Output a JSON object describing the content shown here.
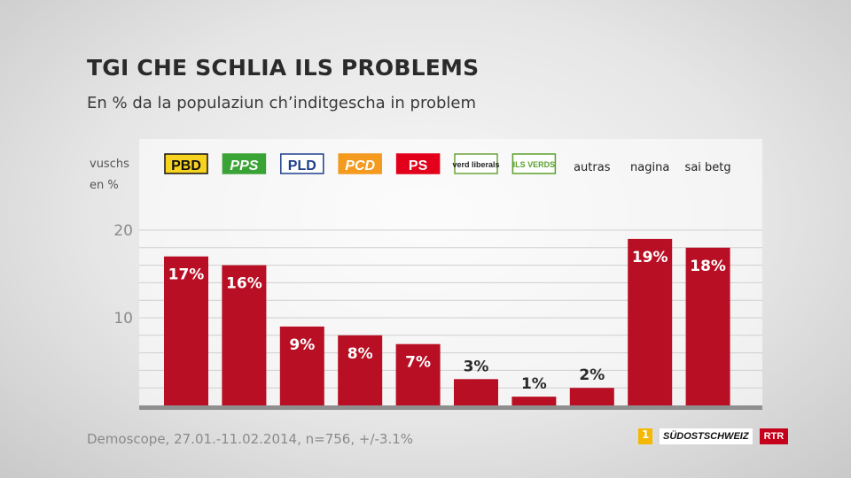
{
  "header": {
    "title": "TGI CHE SCHLIA ILS PROBLEMS",
    "subtitle": "En % da la populaziun ch’inditgescha in problem"
  },
  "footer": {
    "source": "Demoscope, 27.01.-11.02.2014, n=756, +/-3.1%",
    "logos": [
      "SÜDOSTSCHWEIZ",
      "RTR"
    ]
  },
  "colors": {
    "bar": "#b80f24",
    "axis": "#8f8f8f",
    "grid": "#cfcfcf"
  },
  "chart_data": {
    "type": "bar",
    "title": "TGI CHE SCHLIA ILS PROBLEMS",
    "ylabel": "vuschs en %",
    "ylim": [
      0,
      20
    ],
    "yticks": [
      10,
      20
    ],
    "grid": true,
    "categories": [
      "PBD",
      "PPS",
      "PLD",
      "PCD",
      "PS",
      "verd liberals",
      "ILS VERDS",
      "autras",
      "nagina",
      "sai betg"
    ],
    "values": [
      17,
      16,
      9,
      8,
      7,
      3,
      1,
      2,
      19,
      18
    ],
    "data_labels": [
      "17%",
      "16%",
      "9%",
      "8%",
      "7%",
      "3%",
      "1%",
      "2%",
      "19%",
      "18%"
    ],
    "category_styles": [
      {
        "kind": "badge",
        "bg": "#f7d21e",
        "fg": "#111111",
        "border": "#111111",
        "italic": false
      },
      {
        "kind": "badge",
        "bg": "#3aa335",
        "fg": "#ffffff",
        "border": "#3aa335",
        "italic": true
      },
      {
        "kind": "badge",
        "bg": "#ffffff",
        "fg": "#1d3f8c",
        "border": "#1d3f8c",
        "italic": false
      },
      {
        "kind": "badge",
        "bg": "#f39a1f",
        "fg": "#ffffff",
        "border": "#f39a1f",
        "italic": true
      },
      {
        "kind": "badge",
        "bg": "#e2001a",
        "fg": "#ffffff",
        "border": "#e2001a",
        "italic": false
      },
      {
        "kind": "badge",
        "bg": "#ffffff",
        "fg": "#222222",
        "border": "#6aa33a",
        "italic": false
      },
      {
        "kind": "badge",
        "bg": "#ffffff",
        "fg": "#5aa02c",
        "border": "#5aa02c",
        "italic": false
      },
      {
        "kind": "text"
      },
      {
        "kind": "text"
      },
      {
        "kind": "text"
      }
    ]
  }
}
